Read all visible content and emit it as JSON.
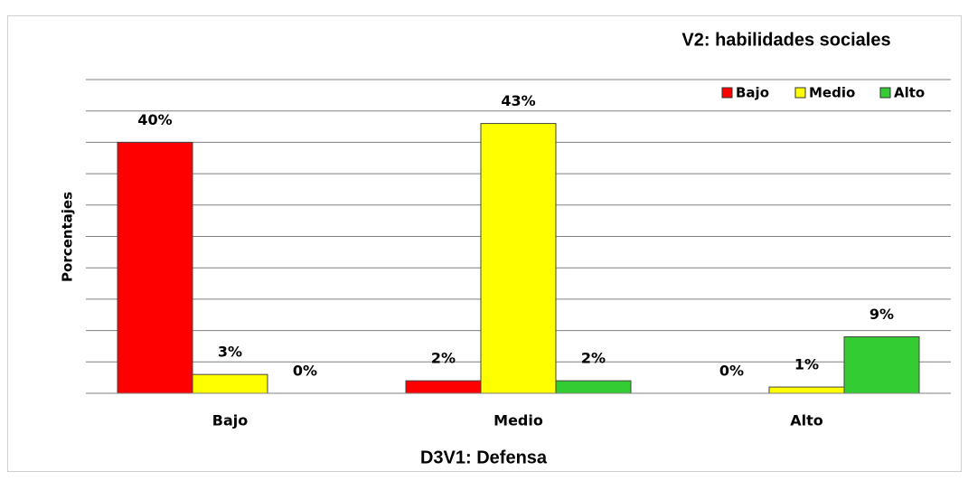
{
  "chart_data": {
    "type": "bar",
    "title": "V2: habilidades sociales",
    "x_label": "D3V1: Defensa",
    "y_label": "Porcentajes",
    "categories": [
      "Bajo",
      "Medio",
      "Alto"
    ],
    "series": [
      {
        "name": "Bajo",
        "color": "#ff0000",
        "values": [
          40,
          2,
          0
        ],
        "value_labels": [
          "40%",
          "2%",
          "0%"
        ]
      },
      {
        "name": "Medio",
        "color": "#ffff00",
        "values": [
          3,
          43,
          1
        ],
        "value_labels": [
          "3%",
          "43%",
          "1%"
        ]
      },
      {
        "name": "Alto",
        "color": "#33cc33",
        "values": [
          0,
          2,
          9
        ],
        "value_labels": [
          "0%",
          "2%",
          "9%"
        ]
      }
    ],
    "ylim": [
      0,
      50
    ],
    "yticks": [
      0,
      5,
      10,
      15,
      20,
      25,
      30,
      35,
      40,
      45,
      50
    ],
    "grid": true,
    "legend": "top-right"
  }
}
